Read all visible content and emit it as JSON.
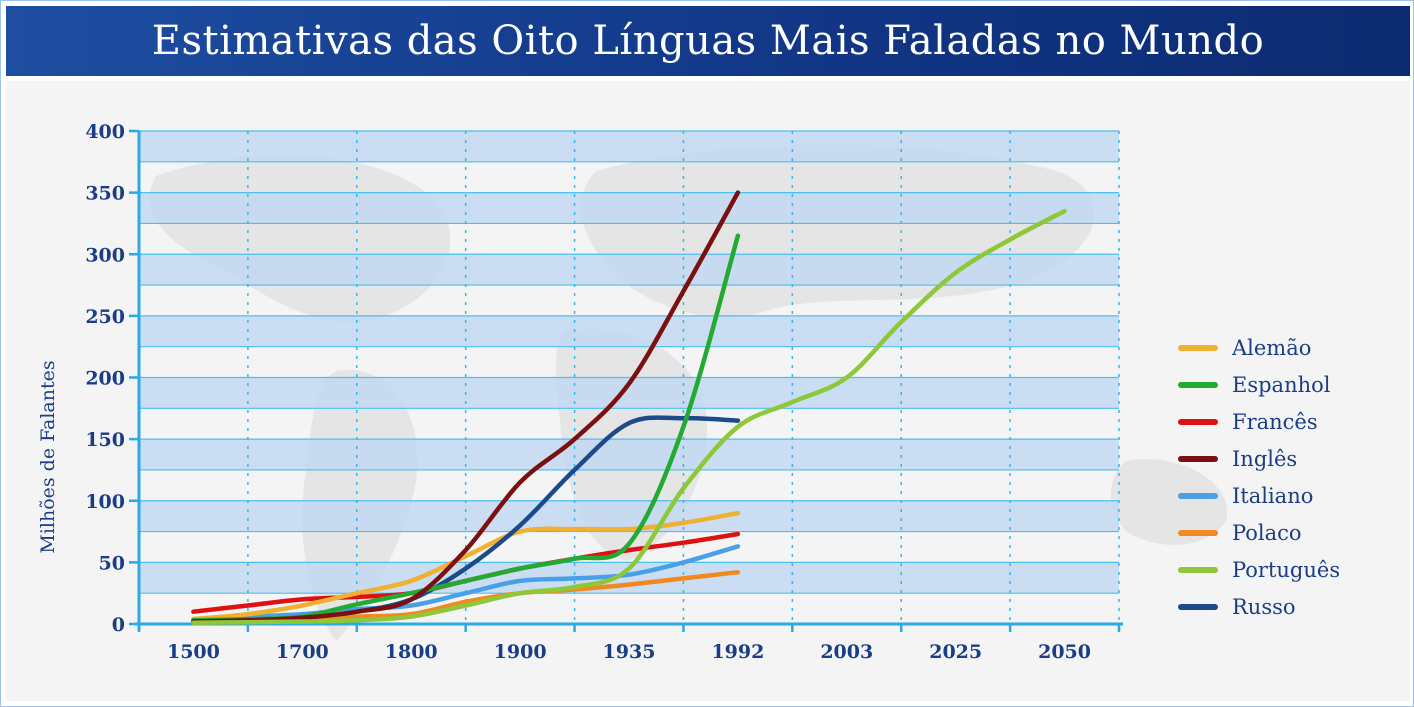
{
  "title": "Estimativas das Oito Línguas Mais Faladas no Mundo",
  "chart_data": {
    "type": "line",
    "title": "Estimativas das Oito Línguas Mais Faladas no Mundo",
    "xlabel": "",
    "ylabel": "Milhões de Falantes",
    "categories": [
      "1500",
      "1700",
      "1800",
      "1900",
      "1935",
      "1992",
      "2003",
      "2025",
      "2050"
    ],
    "ylim": [
      0,
      400
    ],
    "yticks": [
      0,
      50,
      100,
      150,
      200,
      250,
      300,
      350,
      400
    ],
    "grid": true,
    "legend_position": "right",
    "series": [
      {
        "name": "Alemão",
        "color": "#f0b030",
        "points": [
          [
            0,
            4
          ],
          [
            0.5,
            8
          ],
          [
            1,
            15
          ],
          [
            1.5,
            25
          ],
          [
            2,
            35
          ],
          [
            2.5,
            55
          ],
          [
            3,
            75
          ],
          [
            3.5,
            77
          ],
          [
            4,
            77
          ],
          [
            4.5,
            82
          ],
          [
            5,
            90
          ]
        ]
      },
      {
        "name": "Espanhol",
        "color": "#22aa33",
        "points": [
          [
            0,
            3
          ],
          [
            0.5,
            4
          ],
          [
            1,
            6
          ],
          [
            1.5,
            16
          ],
          [
            2,
            25
          ],
          [
            2.5,
            35
          ],
          [
            3,
            45
          ],
          [
            3.5,
            53
          ],
          [
            4,
            65
          ],
          [
            4.5,
            160
          ],
          [
            5,
            315
          ]
        ]
      },
      {
        "name": "Francês",
        "color": "#dd1111",
        "points": [
          [
            0,
            10
          ],
          [
            0.5,
            15
          ],
          [
            1,
            20
          ],
          [
            1.5,
            22
          ],
          [
            2,
            25
          ],
          [
            2.5,
            35
          ],
          [
            3,
            45
          ],
          [
            3.5,
            53
          ],
          [
            4,
            60
          ],
          [
            4.5,
            66
          ],
          [
            5,
            73
          ]
        ]
      },
      {
        "name": "Inglês",
        "color": "#7a1010",
        "points": [
          [
            0,
            2
          ],
          [
            0.5,
            3
          ],
          [
            1,
            5
          ],
          [
            1.5,
            10
          ],
          [
            2,
            20
          ],
          [
            2.5,
            60
          ],
          [
            3,
            115
          ],
          [
            3.5,
            150
          ],
          [
            4,
            195
          ],
          [
            4.5,
            270
          ],
          [
            5,
            350
          ]
        ]
      },
      {
        "name": "Italiano",
        "color": "#4aa0e8",
        "points": [
          [
            0,
            4
          ],
          [
            0.5,
            6
          ],
          [
            1,
            8
          ],
          [
            1.5,
            12
          ],
          [
            2,
            15
          ],
          [
            2.5,
            25
          ],
          [
            3,
            35
          ],
          [
            3.5,
            37
          ],
          [
            4,
            40
          ],
          [
            4.5,
            50
          ],
          [
            5,
            63
          ]
        ]
      },
      {
        "name": "Polaco",
        "color": "#f08a20",
        "points": [
          [
            0,
            2
          ],
          [
            0.5,
            3
          ],
          [
            1,
            4
          ],
          [
            1.5,
            6
          ],
          [
            2,
            8
          ],
          [
            2.5,
            18
          ],
          [
            3,
            25
          ],
          [
            3.5,
            28
          ],
          [
            4,
            32
          ],
          [
            4.5,
            37
          ],
          [
            5,
            42
          ]
        ]
      },
      {
        "name": "Português",
        "color": "#8cc83a",
        "points": [
          [
            0,
            1
          ],
          [
            0.5,
            1.5
          ],
          [
            1,
            2
          ],
          [
            1.5,
            3
          ],
          [
            2,
            6
          ],
          [
            2.5,
            15
          ],
          [
            3,
            25
          ],
          [
            3.5,
            30
          ],
          [
            4,
            45
          ],
          [
            4.5,
            110
          ],
          [
            5,
            160
          ],
          [
            5.5,
            180
          ],
          [
            6,
            200
          ],
          [
            6.5,
            245
          ],
          [
            7,
            285
          ],
          [
            7.5,
            312
          ],
          [
            8,
            335
          ]
        ]
      },
      {
        "name": "Russo",
        "color": "#1c4a8a",
        "points": [
          [
            0,
            2
          ],
          [
            0.5,
            3
          ],
          [
            1,
            5
          ],
          [
            1.5,
            10
          ],
          [
            2,
            20
          ],
          [
            2.5,
            45
          ],
          [
            3,
            80
          ],
          [
            3.5,
            125
          ],
          [
            4,
            163
          ],
          [
            4.5,
            167
          ],
          [
            5,
            165
          ]
        ]
      }
    ]
  }
}
